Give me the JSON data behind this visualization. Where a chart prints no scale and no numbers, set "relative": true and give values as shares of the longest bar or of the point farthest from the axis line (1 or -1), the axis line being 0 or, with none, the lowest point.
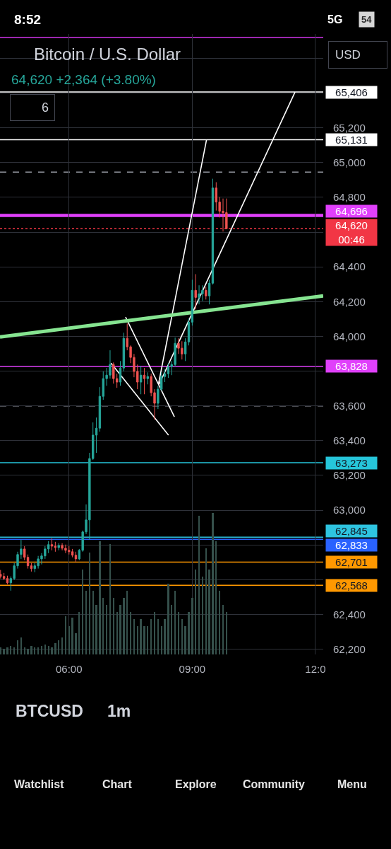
{
  "chart_data": [
    {
      "type": "candlestick",
      "title": "Bitcoin / U.S. Dollar",
      "subtitle": "64,620 +2,364 (+3.80%)",
      "x": [
        4.3333,
        4.4167,
        4.5,
        4.5833,
        4.6667,
        4.75,
        4.8333,
        4.9167,
        5.0,
        5.0833,
        5.1667,
        5.25,
        5.3333,
        5.4167,
        5.5,
        5.5833,
        5.6667,
        5.75,
        5.8333,
        5.9167,
        6.0,
        6.0833,
        6.1667,
        6.25,
        6.3333,
        6.4167,
        6.5,
        6.5833,
        6.6667,
        6.75,
        6.8333,
        6.9167,
        7.0,
        7.0833,
        7.1667,
        7.25,
        7.3333,
        7.4167,
        7.5,
        7.5833,
        7.6667,
        7.75,
        7.8333,
        7.9167,
        8.0,
        8.0833,
        8.1667,
        8.25,
        8.3333,
        8.4167,
        8.5,
        8.5833,
        8.6667,
        8.75,
        8.8333,
        8.9167,
        9.0,
        9.0833,
        9.1667,
        9.25,
        9.3333,
        9.4167,
        9.5,
        9.5833,
        9.6667,
        9.75,
        9.8333
      ],
      "ohlc": [
        [
          62631,
          62656,
          62607,
          62619
        ],
        [
          62619,
          62639,
          62598,
          62607
        ],
        [
          62607,
          62623,
          62574,
          62582
        ],
        [
          62582,
          62619,
          62537,
          62607
        ],
        [
          62607,
          62696,
          62598,
          62680
        ],
        [
          62680,
          62761,
          62664,
          62745
        ],
        [
          62745,
          62830,
          62720,
          62777
        ],
        [
          62777,
          62793,
          62712,
          62729
        ],
        [
          62729,
          62745,
          62664,
          62680
        ],
        [
          62680,
          62696,
          62647,
          62664
        ],
        [
          62664,
          62696,
          62643,
          62680
        ],
        [
          62680,
          62737,
          62664,
          62720
        ],
        [
          62720,
          62753,
          62688,
          62737
        ],
        [
          62737,
          62793,
          62720,
          62777
        ],
        [
          62777,
          62822,
          62753,
          62802
        ],
        [
          62802,
          62838,
          62769,
          62793
        ],
        [
          62793,
          62818,
          62761,
          62785
        ],
        [
          62785,
          62810,
          62769,
          62797
        ],
        [
          62797,
          62810,
          62769,
          62781
        ],
        [
          62781,
          62802,
          62753,
          62769
        ],
        [
          62769,
          62793,
          62745,
          62761
        ],
        [
          62761,
          62777,
          62729,
          62741
        ],
        [
          62741,
          62761,
          62704,
          62720
        ],
        [
          62720,
          62777,
          62712,
          62769
        ],
        [
          62769,
          62883,
          62761,
          62875
        ],
        [
          62875,
          63033,
          62862,
          62944
        ],
        [
          62944,
          63330,
          62830,
          63297
        ],
        [
          63297,
          63505,
          63289,
          63432
        ],
        [
          63432,
          63533,
          63330,
          63472
        ],
        [
          63472,
          63708,
          63452,
          63655
        ],
        [
          63655,
          63798,
          63635,
          63757
        ],
        [
          63757,
          63818,
          63716,
          63777
        ],
        [
          63777,
          63920,
          63757,
          63838
        ],
        [
          63838,
          63850,
          63728,
          63757
        ],
        [
          63757,
          63785,
          63704,
          63737
        ],
        [
          63737,
          63858,
          63716,
          63818
        ],
        [
          63818,
          64021,
          63798,
          63989
        ],
        [
          63989,
          64074,
          63920,
          63940
        ],
        [
          63940,
          63948,
          63846,
          63879
        ],
        [
          63879,
          63899,
          63765,
          63798
        ],
        [
          63798,
          63838,
          63696,
          63737
        ],
        [
          63737,
          63830,
          63667,
          63777
        ],
        [
          63777,
          63818,
          63667,
          63757
        ],
        [
          63757,
          63793,
          63724,
          63769
        ],
        [
          63769,
          63785,
          63655,
          63676
        ],
        [
          63676,
          63696,
          63521,
          63615
        ],
        [
          63615,
          63716,
          63582,
          63696
        ],
        [
          63696,
          63793,
          63688,
          63769
        ],
        [
          63769,
          63810,
          63737,
          63785
        ],
        [
          63785,
          63846,
          63761,
          63826
        ],
        [
          63826,
          63858,
          63777,
          63838
        ],
        [
          63838,
          63993,
          63826,
          63960
        ],
        [
          63960,
          63989,
          63899,
          63932
        ],
        [
          63932,
          63972,
          63867,
          63899
        ],
        [
          63899,
          63989,
          63858,
          63968
        ],
        [
          63968,
          64103,
          63948,
          64082
        ],
        [
          64082,
          64326,
          64062,
          64265
        ],
        [
          64265,
          64358,
          64155,
          64224
        ],
        [
          64224,
          64294,
          64184,
          64245
        ],
        [
          64245,
          64294,
          64204,
          64265
        ],
        [
          64265,
          64285,
          64212,
          64233
        ],
        [
          64233,
          64326,
          64184,
          64306
        ],
        [
          64306,
          64907,
          64298,
          64854
        ],
        [
          64854,
          64887,
          64724,
          64773
        ],
        [
          64773,
          64802,
          64684,
          64720
        ],
        [
          64720,
          64793,
          64603,
          64712
        ],
        [
          64712,
          64793,
          64620,
          64620
        ]
      ],
      "colors": [
        "#ef5350",
        "#ef5350",
        "#ef5350",
        "#26a69a",
        "#26a69a",
        "#26a69a",
        "#26a69a",
        "#ef5350",
        "#ef5350",
        "#ef5350",
        "#26a69a",
        "#26a69a",
        "#26a69a",
        "#26a69a",
        "#26a69a",
        "#ef5350",
        "#ef5350",
        "#26a69a",
        "#ef5350",
        "#ef5350",
        "#ef5350",
        "#ef5350",
        "#ef5350",
        "#26a69a",
        "#26a69a",
        "#26a69a",
        "#26a69a",
        "#26a69a",
        "#26a69a",
        "#26a69a",
        "#26a69a",
        "#26a69a",
        "#26a69a",
        "#ef5350",
        "#ef5350",
        "#26a69a",
        "#26a69a",
        "#ef5350",
        "#ef5350",
        "#ef5350",
        "#ef5350",
        "#26a69a",
        "#ef5350",
        "#26a69a",
        "#ef5350",
        "#ef5350",
        "#26a69a",
        "#26a69a",
        "#26a69a",
        "#26a69a",
        "#26a69a",
        "#26a69a",
        "#ef5350",
        "#ef5350",
        "#26a69a",
        "#26a69a",
        "#26a69a",
        "#ef5350",
        "#26a69a",
        "#26a69a",
        "#ef5350",
        "#26a69a",
        "#26a69a",
        "#ef5350",
        "#ef5350",
        "#ef5350",
        "#ef5350"
      ],
      "xlim": [
        4.32,
        12.19
      ],
      "xticks": [
        {
          "value": 6,
          "label": "06:00"
        },
        {
          "value": 9,
          "label": "09:00"
        },
        {
          "value": 12,
          "label": "12:0"
        }
      ],
      "ylim": [
        62170,
        65740
      ],
      "yticks": [
        {
          "value": 65600,
          "label": null
        },
        {
          "value": 65400,
          "label": null
        },
        {
          "value": 65200,
          "label": "65,200"
        },
        {
          "value": 65000,
          "label": "65,000"
        },
        {
          "value": 64800,
          "label": "64,800"
        },
        {
          "value": 64600,
          "label": null
        },
        {
          "value": 64400,
          "label": "64,400"
        },
        {
          "value": 64200,
          "label": "64,200"
        },
        {
          "value": 64000,
          "label": "64,000"
        },
        {
          "value": 63800,
          "label": null
        },
        {
          "value": 63600,
          "label": "63,600"
        },
        {
          "value": 63400,
          "label": "63,400"
        },
        {
          "value": 63200,
          "label": "63,200"
        },
        {
          "value": 63000,
          "label": "63,000"
        },
        {
          "value": 62800,
          "label": null
        },
        {
          "value": 62600,
          "label": null
        },
        {
          "value": 62400,
          "label": "62,400"
        },
        {
          "value": 62200,
          "label": "62,200"
        }
      ],
      "grid": true,
      "ref_lines": [
        {
          "axis": "y",
          "value": 65720,
          "color": "#9c27b0"
        },
        {
          "axis": "y",
          "value": 65406,
          "label": "65,406",
          "color": "#ffffff"
        },
        {
          "axis": "y",
          "value": 65131,
          "label": "65,131",
          "color": "#ffffff"
        },
        {
          "axis": "y",
          "value": 64945,
          "color": "#9598a1",
          "line_style": "dashed"
        },
        {
          "axis": "y",
          "value": 64696,
          "label": "64,696",
          "color": "#e040fb"
        },
        {
          "axis": "y",
          "value": 64620,
          "label": "64,620\n00:46",
          "color": "#f23645",
          "line_style": "dotted"
        },
        {
          "axis": "y",
          "value": 63828,
          "label": "63,828",
          "color": "#e040fb"
        },
        {
          "axis": "y",
          "value": 63600,
          "color": "#9598a1",
          "line_style": "dashed"
        },
        {
          "axis": "y",
          "value": 63273,
          "label": "63,273",
          "color": "#26c6da"
        },
        {
          "axis": "y",
          "value": 62845,
          "label": "62,845",
          "color": "#2ec4e0"
        },
        {
          "axis": "y",
          "value": 62833,
          "label": "62,833",
          "color": "#2962ff"
        },
        {
          "axis": "y",
          "value": 62701,
          "label": "62,701",
          "color": "#ff9800"
        },
        {
          "axis": "y",
          "value": 62568,
          "label": "62,568",
          "color": "#ff9800"
        }
      ],
      "series": [
        {
          "type": "line",
          "color": "#ffffff",
          "x": [
            7.023,
            8.422
          ],
          "values": [
            63846,
            63432
          ]
        },
        {
          "type": "line",
          "color": "#ffffff",
          "x": [
            7.377,
            8.566
          ],
          "values": [
            64111,
            63537
          ]
        },
        {
          "type": "line",
          "color": "#ffffff",
          "x": [
            8.177,
            9.348
          ],
          "values": [
            63724,
            65131
          ]
        },
        {
          "type": "line",
          "color": "#ffffff",
          "x": [
            8.194,
            11.503
          ],
          "values": [
            63724,
            65406
          ]
        },
        {
          "type": "line",
          "color": "#86e491",
          "x": [
            4.32,
            12.19
          ],
          "values": [
            63997,
            64233
          ]
        }
      ],
      "annotations": [
        "8:52",
        "5G",
        "54",
        "USD",
        "6",
        "BTCUSD",
        "1m",
        "Watchlist",
        "Chart",
        "Explore",
        "Community",
        "Menu"
      ]
    },
    {
      "type": "bar",
      "relative": true,
      "x": [
        4.3333,
        4.4167,
        4.5,
        4.5833,
        4.6667,
        4.75,
        4.8333,
        4.9167,
        5.0,
        5.0833,
        5.1667,
        5.25,
        5.3333,
        5.4167,
        5.5,
        5.5833,
        5.6667,
        5.75,
        5.8333,
        5.9167,
        6.0,
        6.0833,
        6.1667,
        6.25,
        6.3333,
        6.4167,
        6.5,
        6.5833,
        6.6667,
        6.75,
        6.8333,
        6.9167,
        7.0,
        7.0833,
        7.1667,
        7.25,
        7.3333,
        7.4167,
        7.5,
        7.5833,
        7.6667,
        7.75,
        7.8333,
        7.9167,
        8.0,
        8.0833,
        8.1667,
        8.25,
        8.3333,
        8.4167,
        8.5,
        8.5833,
        8.6667,
        8.75,
        8.8333,
        8.9167,
        9.0,
        9.0833,
        9.1667,
        9.25,
        9.3333,
        9.4167,
        9.5,
        9.5833,
        9.6667,
        9.75,
        9.8333
      ],
      "values": [
        0.05,
        0.04,
        0.05,
        0.06,
        0.05,
        0.1,
        0.12,
        0.05,
        0.04,
        0.06,
        0.05,
        0.05,
        0.06,
        0.07,
        0.06,
        0.05,
        0.08,
        0.1,
        0.12,
        0.27,
        0.2,
        0.26,
        0.15,
        0.3,
        0.6,
        0.45,
        0.72,
        0.45,
        0.35,
        0.8,
        0.4,
        0.35,
        0.78,
        0.4,
        0.3,
        0.35,
        0.4,
        0.45,
        0.3,
        0.25,
        0.2,
        0.25,
        0.2,
        0.2,
        0.25,
        0.3,
        0.25,
        0.2,
        0.25,
        0.5,
        0.35,
        0.45,
        0.3,
        0.25,
        0.2,
        0.3,
        0.4,
        0.6,
        0.98,
        0.55,
        0.75,
        0.6,
        1.0,
        0.8,
        0.45,
        0.35,
        0.3
      ],
      "color": "#35504b",
      "xlim": [
        4.32,
        12.19
      ]
    }
  ]
}
